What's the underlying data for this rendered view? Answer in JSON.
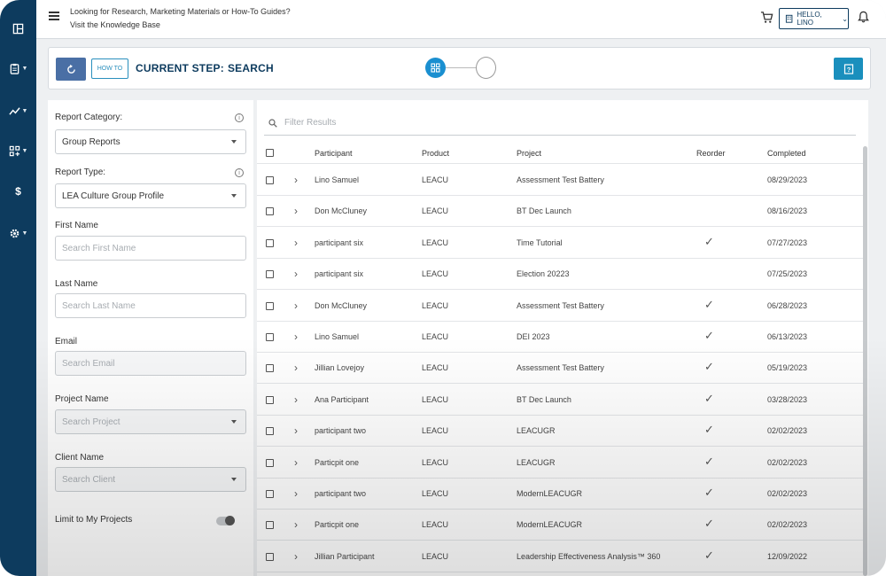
{
  "topbar": {
    "kb_line1": "Looking for Research, Marketing Materials or How-To Guides?",
    "kb_line2": "Visit the Knowledge Base",
    "hello_label": "HELLO, LINO"
  },
  "nav": {
    "items": [
      {
        "icon": "dashboard-icon"
      },
      {
        "icon": "clipboard-icon"
      },
      {
        "icon": "chart-icon"
      },
      {
        "icon": "apps-icon"
      },
      {
        "icon": "dollar-icon"
      },
      {
        "icon": "gear-icon"
      }
    ]
  },
  "stepbar": {
    "howto_label": "HOW TO",
    "step_prefix": "CURRENT STEP:",
    "step_value": "SEARCH"
  },
  "filters": {
    "report_category_label": "Report Category:",
    "report_category_value": "Group Reports",
    "report_type_label": "Report Type:",
    "report_type_value": "LEA Culture Group Profile",
    "first_name_label": "First Name",
    "first_name_placeholder": "Search First Name",
    "last_name_label": "Last Name",
    "last_name_placeholder": "Search Last Name",
    "email_label": "Email",
    "email_placeholder": "Search Email",
    "project_label": "Project Name",
    "project_placeholder": "Search Project",
    "client_label": "Client Name",
    "client_placeholder": "Search Client",
    "limit_label": "Limit to My Projects"
  },
  "results": {
    "filter_placeholder": "Filter Results",
    "columns": {
      "participant": "Participant",
      "product": "Product",
      "project": "Project",
      "reorder": "Reorder",
      "completed": "Completed"
    },
    "reorder_glyph": "✓",
    "rows": [
      {
        "participant": "Lino Samuel",
        "product": "LEACU",
        "project": "Assessment Test Battery",
        "reorder": false,
        "completed": "08/29/2023"
      },
      {
        "participant": "Don McCluney",
        "product": "LEACU",
        "project": "BT Dec Launch",
        "reorder": false,
        "completed": "08/16/2023"
      },
      {
        "participant": "participant six",
        "product": "LEACU",
        "project": "Time Tutorial",
        "reorder": true,
        "completed": "07/27/2023"
      },
      {
        "participant": "participant six",
        "product": "LEACU",
        "project": "Election 20223",
        "reorder": false,
        "completed": "07/25/2023"
      },
      {
        "participant": "Don McCluney",
        "product": "LEACU",
        "project": "Assessment Test Battery",
        "reorder": true,
        "completed": "06/28/2023"
      },
      {
        "participant": "Lino Samuel",
        "product": "LEACU",
        "project": "DEI 2023",
        "reorder": true,
        "completed": "06/13/2023"
      },
      {
        "participant": "Jillian Lovejoy",
        "product": "LEACU",
        "project": "Assessment Test Battery",
        "reorder": true,
        "completed": "05/19/2023"
      },
      {
        "participant": "Ana Participant",
        "product": "LEACU",
        "project": "BT Dec Launch",
        "reorder": true,
        "completed": "03/28/2023"
      },
      {
        "participant": "participant two",
        "product": "LEACU",
        "project": "LEACUGR",
        "reorder": true,
        "completed": "02/02/2023"
      },
      {
        "participant": "Particpit one",
        "product": "LEACU",
        "project": "LEACUGR",
        "reorder": true,
        "completed": "02/02/2023"
      },
      {
        "participant": "participant two",
        "product": "LEACU",
        "project": "ModernLEACUGR",
        "reorder": true,
        "completed": "02/02/2023"
      },
      {
        "participant": "Particpit one",
        "product": "LEACU",
        "project": "ModernLEACUGR",
        "reorder": true,
        "completed": "02/02/2023"
      },
      {
        "participant": "Jillian Participant",
        "product": "LEACU",
        "project": "Leadership Effectiveness Analysis™ 360",
        "reorder": true,
        "completed": "12/09/2022"
      }
    ]
  },
  "colors": {
    "rail": "#0d3b5e",
    "accent": "#1a8fbd",
    "refresh": "#4a6fa5"
  }
}
